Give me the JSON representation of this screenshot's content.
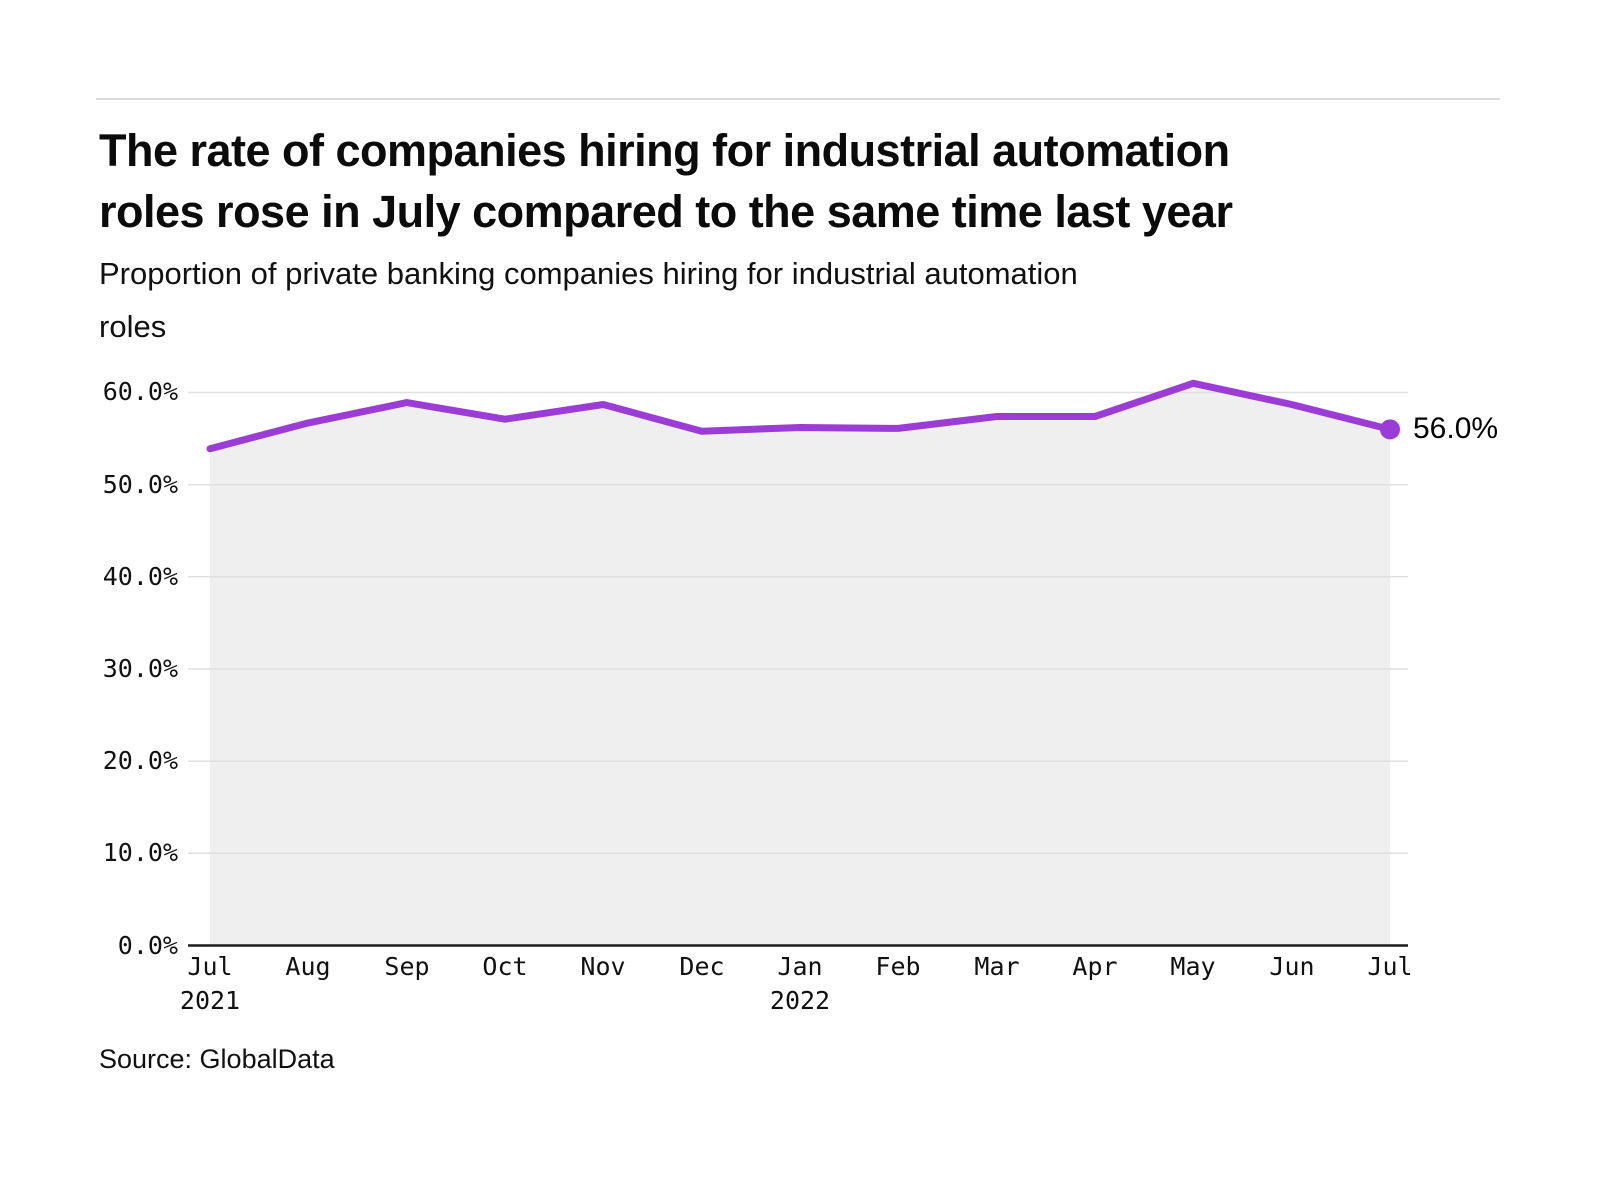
{
  "page": {
    "title_line1": "The rate of companies hiring for industrial automation",
    "title_line2": "roles rose in July compared to the same time last year",
    "subtitle_line1": "Proportion of private banking companies hiring for industrial automation",
    "subtitle_line2": "roles",
    "source": "Source: GlobalData"
  },
  "chart_data": {
    "type": "line",
    "title": "The rate of companies hiring for industrial automation roles rose in July compared to the same time last year",
    "subtitle": "Proportion of private banking companies hiring for industrial automation roles",
    "categories": [
      "Jul 2021",
      "Aug 2021",
      "Sep 2021",
      "Oct 2021",
      "Nov 2021",
      "Dec 2021",
      "Jan 2022",
      "Feb 2022",
      "Mar 2022",
      "Apr 2022",
      "May 2022",
      "Jun 2022",
      "Jul 2022"
    ],
    "values": [
      53.9,
      56.7,
      58.9,
      57.1,
      58.7,
      55.8,
      56.2,
      56.1,
      57.4,
      57.4,
      61.0,
      58.7,
      56.0
    ],
    "xtick_labels": [
      {
        "label": "Jul",
        "sub": "2021"
      },
      {
        "label": "Aug",
        "sub": ""
      },
      {
        "label": "Sep",
        "sub": ""
      },
      {
        "label": "Oct",
        "sub": ""
      },
      {
        "label": "Nov",
        "sub": ""
      },
      {
        "label": "Dec",
        "sub": ""
      },
      {
        "label": "Jan",
        "sub": "2022"
      },
      {
        "label": "Feb",
        "sub": ""
      },
      {
        "label": "Mar",
        "sub": ""
      },
      {
        "label": "Apr",
        "sub": ""
      },
      {
        "label": "May",
        "sub": ""
      },
      {
        "label": "Jun",
        "sub": ""
      },
      {
        "label": "Jul",
        "sub": ""
      }
    ],
    "ytick_labels": [
      "60.0%",
      "50.0%",
      "40.0%",
      "30.0%",
      "20.0%",
      "10.0%",
      "0.0%"
    ],
    "ytick_values": [
      60,
      50,
      40,
      30,
      20,
      10,
      0
    ],
    "ylim": [
      0,
      60
    ],
    "grid": "horizontal",
    "legend_position": "none",
    "end_label": "56.0%",
    "xlabel": "",
    "ylabel": "",
    "colors": {
      "line": "#9B3CD7",
      "marker": "#9B3CD7",
      "area_fill": "#EFEFEF",
      "gridline": "#E0E0E0",
      "axis_line": "#1D1D1D",
      "text": "#111111",
      "divider": "#DCDCDC"
    }
  }
}
